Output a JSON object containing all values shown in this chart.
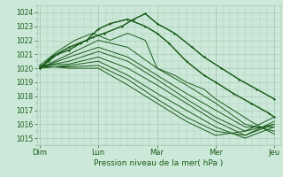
{
  "bg_color": "#cce8d8",
  "grid_color": "#aaccb8",
  "line_color": "#1a5c1a",
  "xlabel": "Pression niveau de la mer( hPa )",
  "xtick_labels": [
    "Dim",
    "Lun",
    "Mar",
    "Mer",
    "Jeu"
  ],
  "ylim": [
    1014.5,
    1024.5
  ],
  "yticks": [
    1015,
    1016,
    1017,
    1018,
    1019,
    1020,
    1021,
    1022,
    1023,
    1024
  ],
  "series": [
    {
      "x": [
        0.0,
        0.15,
        0.3,
        0.5,
        0.7,
        0.9,
        1.1,
        1.4,
        1.6,
        1.8,
        2.0,
        2.3,
        2.6,
        2.8,
        3.1,
        3.4,
        3.7,
        4.0
      ],
      "y": [
        1020.0,
        1020.5,
        1021.0,
        1021.3,
        1021.8,
        1022.2,
        1022.5,
        1023.0,
        1023.5,
        1023.9,
        1023.2,
        1022.5,
        1021.5,
        1020.8,
        1020.0,
        1019.2,
        1018.5,
        1017.8
      ]
    },
    {
      "x": [
        0.0,
        0.2,
        0.5,
        0.8,
        1.0,
        1.2,
        1.5,
        1.8,
        2.0,
        2.2,
        2.5,
        2.8,
        3.0,
        3.3,
        3.6,
        3.9,
        4.0
      ],
      "y": [
        1020.0,
        1020.8,
        1021.5,
        1022.0,
        1022.8,
        1023.2,
        1023.5,
        1023.0,
        1022.5,
        1021.8,
        1020.5,
        1019.5,
        1019.0,
        1018.2,
        1017.5,
        1016.8,
        1016.5
      ]
    },
    {
      "x": [
        0.0,
        0.3,
        0.6,
        0.9,
        1.2,
        1.5,
        1.8,
        2.0,
        2.3,
        2.5,
        2.8,
        3.0,
        3.3,
        3.6,
        3.9,
        4.0
      ],
      "y": [
        1020.2,
        1021.2,
        1022.0,
        1022.5,
        1022.0,
        1022.5,
        1022.0,
        1020.0,
        1019.5,
        1019.0,
        1018.5,
        1017.8,
        1017.0,
        1016.2,
        1015.5,
        1015.3
      ]
    },
    {
      "x": [
        0.0,
        0.5,
        1.0,
        1.5,
        2.0,
        2.5,
        3.0,
        3.5,
        4.0
      ],
      "y": [
        1020.0,
        1021.0,
        1022.0,
        1021.5,
        1020.0,
        1018.8,
        1017.5,
        1016.0,
        1015.5
      ]
    },
    {
      "x": [
        0.0,
        0.5,
        1.0,
        1.5,
        2.0,
        2.5,
        3.0,
        3.5,
        4.0
      ],
      "y": [
        1020.0,
        1020.8,
        1021.5,
        1020.8,
        1019.5,
        1018.2,
        1017.0,
        1015.8,
        1015.8
      ]
    },
    {
      "x": [
        0.0,
        0.5,
        1.0,
        1.5,
        2.0,
        2.5,
        3.0,
        3.5,
        4.0
      ],
      "y": [
        1020.1,
        1020.5,
        1021.2,
        1020.5,
        1019.2,
        1017.8,
        1016.5,
        1015.5,
        1016.0
      ]
    },
    {
      "x": [
        0.0,
        0.5,
        1.0,
        1.5,
        2.0,
        2.5,
        3.0,
        3.5,
        4.0
      ],
      "y": [
        1020.2,
        1020.3,
        1020.8,
        1020.0,
        1018.8,
        1017.5,
        1016.2,
        1015.2,
        1016.2
      ]
    },
    {
      "x": [
        0.0,
        0.5,
        1.0,
        1.5,
        2.0,
        2.5,
        3.0,
        3.5,
        4.0
      ],
      "y": [
        1020.0,
        1020.2,
        1020.5,
        1019.5,
        1018.2,
        1017.0,
        1015.8,
        1015.0,
        1015.8
      ]
    },
    {
      "x": [
        0.0,
        0.5,
        1.0,
        1.5,
        2.0,
        2.5,
        3.0,
        3.5,
        4.0
      ],
      "y": [
        1020.1,
        1020.1,
        1020.2,
        1019.2,
        1017.8,
        1016.5,
        1015.5,
        1015.2,
        1016.0
      ]
    },
    {
      "x": [
        0.0,
        0.5,
        1.0,
        1.5,
        2.0,
        2.5,
        3.0,
        3.5,
        4.0
      ],
      "y": [
        1020.2,
        1020.0,
        1020.0,
        1018.8,
        1017.5,
        1016.2,
        1015.2,
        1015.5,
        1016.5
      ]
    }
  ],
  "marker_series": [
    {
      "x": [
        0.0,
        0.15,
        0.3,
        0.5,
        0.7,
        0.9,
        1.1,
        1.4,
        1.6,
        1.8,
        2.0,
        2.3,
        2.6,
        2.8,
        3.1,
        3.4,
        3.7,
        4.0
      ],
      "y": [
        1020.0,
        1020.5,
        1021.0,
        1021.3,
        1021.8,
        1022.2,
        1022.5,
        1023.0,
        1023.5,
        1023.9,
        1023.2,
        1022.5,
        1021.5,
        1020.8,
        1020.0,
        1019.2,
        1018.5,
        1017.8
      ]
    },
    {
      "x": [
        0.0,
        0.2,
        0.5,
        0.8,
        1.0,
        1.2,
        1.5,
        1.8,
        2.0,
        2.2,
        2.5,
        2.8,
        3.0,
        3.3,
        3.6,
        3.9,
        4.0
      ],
      "y": [
        1020.0,
        1020.8,
        1021.5,
        1022.0,
        1022.8,
        1023.2,
        1023.5,
        1023.0,
        1022.5,
        1021.8,
        1020.5,
        1019.5,
        1019.0,
        1018.2,
        1017.5,
        1016.8,
        1016.5
      ]
    }
  ]
}
